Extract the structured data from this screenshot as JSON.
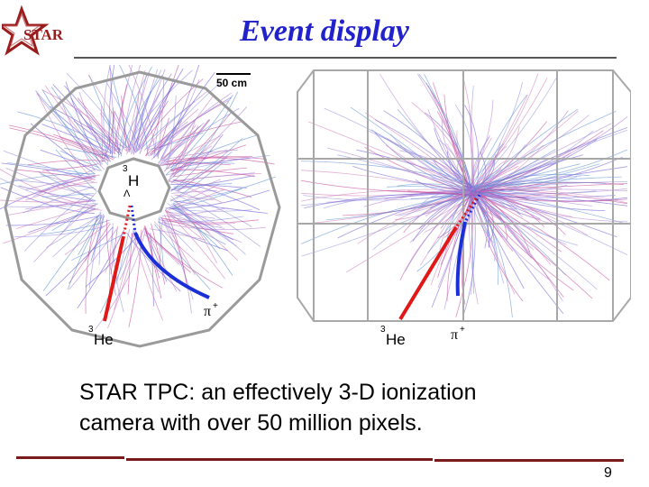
{
  "logo": {
    "text": "STAR",
    "icon": "star-logo-icon"
  },
  "slide": {
    "title": "Event display",
    "page_number": "9"
  },
  "left_panel": {
    "scale_label": "50 cm",
    "vertex_label_sup": "3",
    "vertex_label_top": "H",
    "vertex_label_sub": "Λ",
    "helium_label_sup": "3",
    "helium_label": "He",
    "pion_label": "π",
    "pion_label_sup": "+"
  },
  "right_panel": {
    "helium_label_sup": "3",
    "helium_label": "He",
    "pion_label": "π",
    "pion_label_sup": "+"
  },
  "caption": {
    "line1": "STAR TPC: an effectively 3-D ionization",
    "line2": "camera with over 50 million pixels."
  },
  "colors": {
    "title": "#2222cc",
    "accent_rule": "#7a1a1a",
    "helium_track": "#e01818",
    "pion_track": "#1a2fd6"
  }
}
